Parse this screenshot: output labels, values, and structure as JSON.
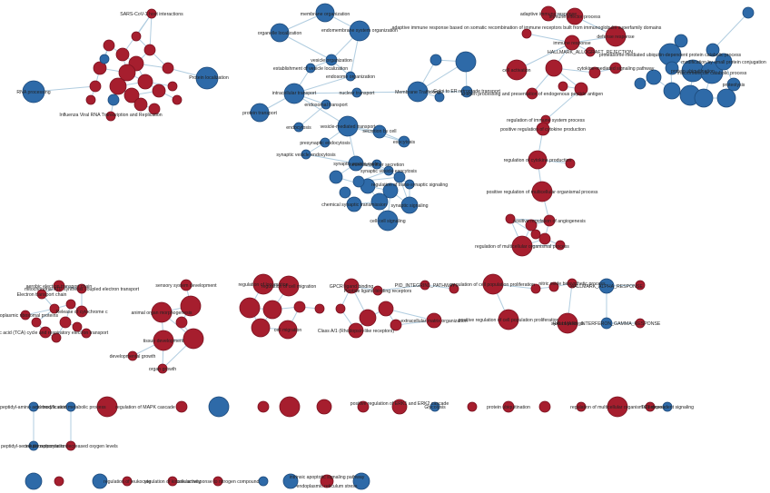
{
  "colors": {
    "red": "#a61e2e",
    "blue": "#2e6aa8",
    "edge": "#a9c8dd"
  },
  "labels": {
    "n1": "SARS-CoV-1 host interactions",
    "n2": "RNA processing",
    "n3": "Influenza Viral RNA Transcription and Replication",
    "n4": "Protein localization",
    "n5": "membrane organization",
    "n6": "organelle localization",
    "n7": "endomembrane system organization",
    "n8": "vesicle organization",
    "n9": "establishment of vesicle localization",
    "n10": "endosome organization",
    "n11": "intracellular transport",
    "n12": "nuclear transport",
    "n13": "endosomal transport",
    "n14": "protein transport",
    "n15": "endocytosis",
    "n16": "Membrane Trafficking",
    "n17": "Golgi to ER retrograde transport",
    "n18": "vesicle-mediated transport",
    "n19": "secretion by cell",
    "n20": "exocytosis",
    "n21": "presynaptic endocytosis",
    "n22": "synaptic vesicle endocytosis",
    "n23": "synaptic vesicle cycle",
    "n24": "neurotransmitter secretion",
    "n25": "synaptic vesicle exocytosis",
    "n26": "regulation of trans-synaptic signaling",
    "n27": "chemical synaptic transmission",
    "n28": "synaptic signaling",
    "n29": "cell-cell signaling",
    "n30": "adaptive immune response",
    "n31": "adaptive immune response based on somatic recombination of immune receptors built from immunoglobulin superfamily domains",
    "n32": "immune effector process",
    "n33": "defense response",
    "n34": "HALLMARK_ALLOGRAFT_REJECTION",
    "n35": "cell activation",
    "n36": "immune response",
    "n37": "antigen processing and presentation of endogenous peptide antigen",
    "n38": "cytokine-mediated signaling pathway",
    "n39": "regulation of immune system process",
    "n40": "positive regulation of cytokine production",
    "n41": "regulation of cytokine production",
    "n42": "positive regulation of multicellular organismal process",
    "n43": "positive regulation of angiogenesis",
    "n44": "regulation of multicellular organismal process",
    "n45": "proteasome-mediated ubiquitin-dependent protein catabolic process",
    "n46": "protein ubiquitination",
    "n47": "macromolecule catabolic process",
    "n48": "modification by small protein conjugation",
    "n49": "proteolysis",
    "n50": "Electron transport chain",
    "n51": "aerobic electron transport chain",
    "n52": "mitochondrial ATP synthesis coupled electron transport",
    "n53": "Cytoplasmic ribosomal proteins",
    "n54": "Release of cytochrome c",
    "n55": "The citric acid (TCA) cycle and respiratory electron transport",
    "n56": "sensory system development",
    "n57": "animal organ morphogenesis",
    "n58": "tissue development",
    "n59": "developmental growth",
    "n60": "organ growth",
    "n61": "regulation of locomotion",
    "n62": "regulation of cell migration",
    "n63": "cell migration",
    "n64": "GPCR ligand binding",
    "n65": "PID_INTEGRIN1_PATHWAY",
    "n66": "Class A/1 (Rhodopsin-like receptors)",
    "n67": "Peptide ligand-binding receptors",
    "n68": "extracellular matrix organization",
    "n69": "regulation of cell population proliferation",
    "n70": "positive regulation of cell population proliferation",
    "n71": "nitric oxide biosynthetic process",
    "n72": "system process",
    "n73": "HALLMARK_ALPHA_RESPONSE",
    "n74": "HALLMARK_INTERFERON_GAMMA_RESPONSE",
    "n75": "peptidyl-amino acid modification",
    "n76": "peptidyl-serine phosphorylation",
    "n77": "carboxylic acid metabolic process",
    "n78": "cellular response to decreased oxygen levels",
    "n79": "regulation of MAPK cascade",
    "n80": "positive regulation of ERK1 and ERK2 cascade",
    "n81": "Glycolysis",
    "n82": "protein ubiquitination",
    "n83": "regulation of multicellular organismal process",
    "n84": "TCF dependent signaling",
    "n85": "regulation of leukocyte",
    "n86": "cellular response to nitrogen compound",
    "n87": "regulation of kinase activity",
    "n88": "intrinsic apoptotic signaling pathway",
    "n89": "endoplasmic reticulum stress"
  }
}
